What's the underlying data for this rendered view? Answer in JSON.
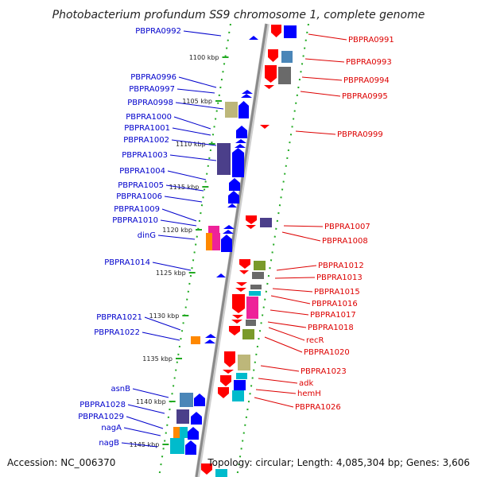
{
  "title": "Photobacterium profundum SS9 chromosome 1, complete genome",
  "accession": "Accession: NC_006370",
  "topology": "Topology: circular; Length: 4,085,304 bp; Genes: 3,606",
  "colors": {
    "forward": "#0000ff",
    "reverse": "#ff0000",
    "left_label": "#0000cc",
    "right_label": "#dd0000",
    "ruler": "#22aa22",
    "backbone": "#9a9a9a"
  },
  "ticks": [
    "1100 kbp",
    "1105 kbp",
    "1110 kbp",
    "1115 kbp",
    "1120 kbp",
    "1125 kbp",
    "1130 kbp",
    "1135 kbp",
    "1140 kbp",
    "1145 kbp"
  ],
  "genes_left": [
    "PBPRA0992",
    "PBPRA0996",
    "PBPRA0997",
    "PBPRA0998",
    "PBPRA1000",
    "PBPRA1001",
    "PBPRA1002",
    "PBPRA1003",
    "PBPRA1004",
    "PBPRA1005",
    "PBPRA1006",
    "PBPRA1009",
    "PBPRA1010",
    "dinG",
    "PBPRA1014",
    "PBPRA1021",
    "PBPRA1022",
    "asnB",
    "PBPRA1028",
    "PBPRA1029",
    "nagA",
    "nagB"
  ],
  "genes_right": [
    "PBPRA0991",
    "PBPRA0993",
    "PBPRA0994",
    "PBPRA0995",
    "PBPRA0999",
    "PBPRA1007",
    "PBPRA1008",
    "PBPRA1012",
    "PBPRA1013",
    "PBPRA1015",
    "PBPRA1016",
    "PBPRA1017",
    "PBPRA1018",
    "recR",
    "PBPRA1020",
    "PBPRA1023",
    "adk",
    "hemH",
    "PBPRA1026"
  ]
}
